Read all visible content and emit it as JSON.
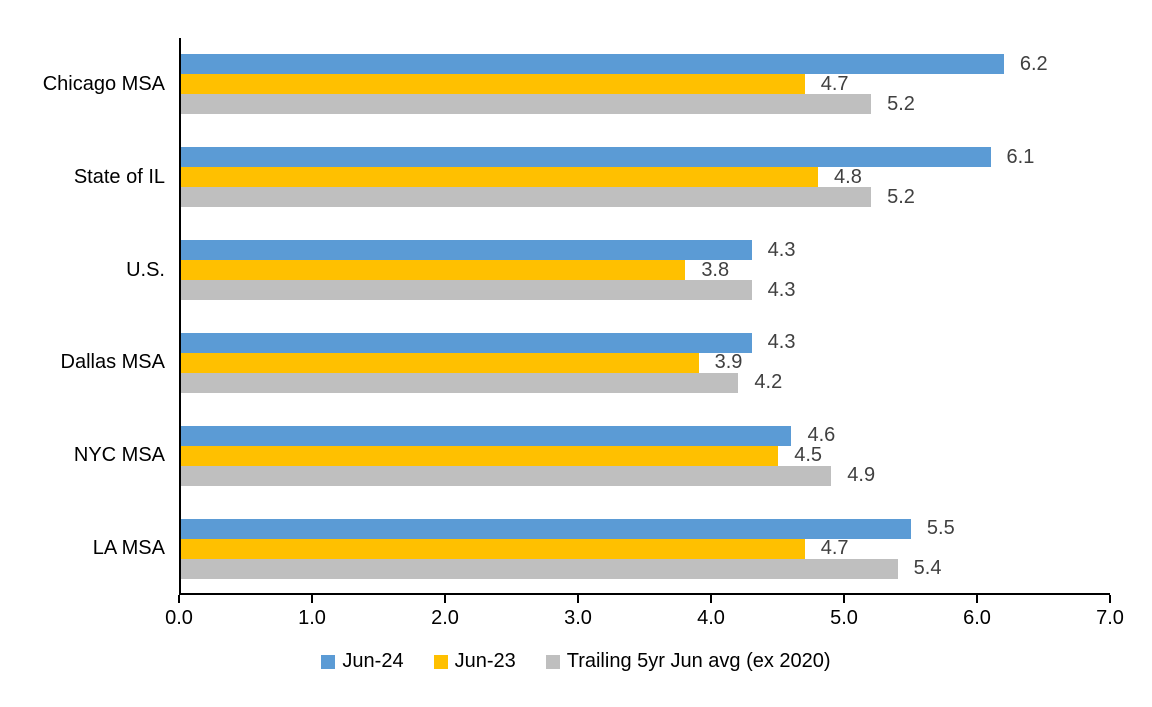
{
  "chart_data": {
    "type": "bar",
    "orientation": "horizontal",
    "title": "",
    "xlabel": "",
    "ylabel": "",
    "categories": [
      "Chicago MSA",
      "State of IL",
      "U.S.",
      "Dallas MSA",
      "NYC MSA",
      "LA MSA"
    ],
    "series": [
      {
        "name": "Jun-24",
        "color": "#5B9BD5",
        "values": [
          6.2,
          6.1,
          4.3,
          4.3,
          4.6,
          5.5
        ]
      },
      {
        "name": "Jun-23",
        "color": "#FFC000",
        "values": [
          4.7,
          4.8,
          3.8,
          3.9,
          4.5,
          4.7
        ]
      },
      {
        "name": "Trailing 5yr Jun avg (ex 2020)",
        "color": "#BFBFBF",
        "values": [
          5.2,
          5.2,
          4.3,
          4.2,
          4.9,
          5.4
        ]
      }
    ],
    "xlim": [
      0,
      7
    ],
    "xticks": [
      "0.0",
      "1.0",
      "2.0",
      "3.0",
      "4.0",
      "5.0",
      "6.0",
      "7.0"
    ],
    "grid": false,
    "data_labels": true,
    "legend_position": "bottom",
    "colors": {
      "axis": "#000000",
      "data_label": "#404040",
      "tick_label": "#000000",
      "category_label": "#000000",
      "background": "#FFFFFF"
    }
  }
}
